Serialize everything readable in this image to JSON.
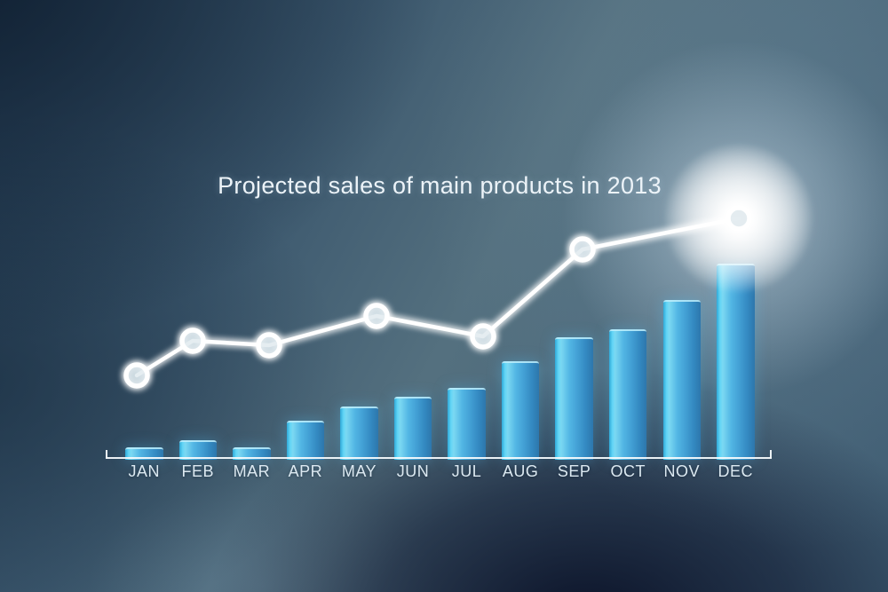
{
  "chart_data": {
    "type": "bar",
    "overlay": "line",
    "title": "Projected sales of main products in 2013",
    "categories": [
      "JAN",
      "FEB",
      "MAR",
      "APR",
      "MAY",
      "JUN",
      "JUL",
      "AUG",
      "SEP",
      "OCT",
      "NOV",
      "DEC"
    ],
    "series": [
      {
        "name": "monthly-sales-bars",
        "type": "bar",
        "values": [
          5.5,
          9.1,
          5.5,
          19.2,
          26.5,
          31.5,
          36.1,
          49.8,
          62.1,
          66.2,
          81.3,
          100
        ]
      },
      {
        "name": "trend-line-markers",
        "type": "line",
        "points": [
          {
            "category": "JAN",
            "value": 42.5
          },
          {
            "category": "FEB",
            "value": 60.3
          },
          {
            "category": "MAR",
            "value": 58.0
          },
          {
            "category": "MAY",
            "value": 73.1
          },
          {
            "category": "JUL",
            "value": 62.6
          },
          {
            "category": "SEP",
            "value": 107.3
          },
          {
            "category": "DEC",
            "value": 123.3
          }
        ]
      }
    ],
    "value_note": "no numeric axis shown; values are relative, scaled so December bar = 100",
    "xlabel": "",
    "ylabel": "",
    "grid": false,
    "legend": "none",
    "annotations": {
      "emphasized_point": "DEC",
      "emphasis_style": "large white glow halo"
    },
    "colors": {
      "bar_gradient_left": "#63d6f6",
      "bar_gradient_mid": "#52b6e4",
      "bar_gradient_right": "#2d77ac",
      "line": "#ffffff",
      "marker_ring": "#ffffff",
      "marker_fill": "rgba(208,222,230,0.55)",
      "axis": "#f6fafc",
      "label_text": "#dce9f1",
      "title_text": "#ecf3f8",
      "background_dark": "#0d1530",
      "background_mid": "#3d5a70",
      "background_light": "#54707f"
    }
  }
}
